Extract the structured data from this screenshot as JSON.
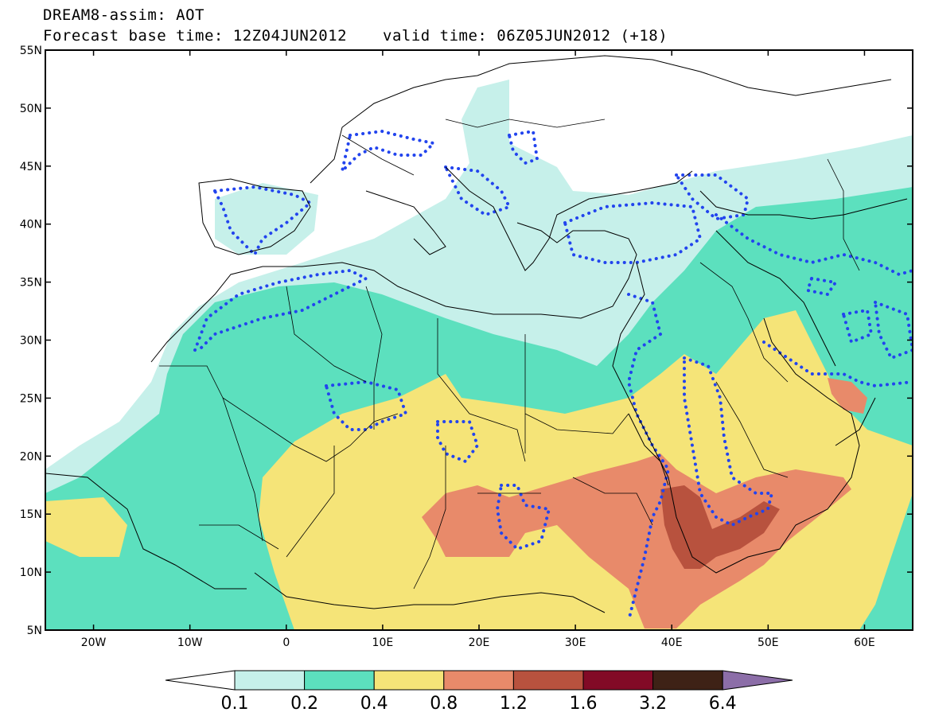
{
  "title": {
    "line1": "DREAM8-assim: AOT",
    "line2": "Forecast base time: 12Z04JUN2012",
    "line3": "valid time: 06Z05JUN2012 (+18)"
  },
  "map": {
    "lat_ticks": [
      "55N",
      "50N",
      "45N",
      "40N",
      "35N",
      "30N",
      "25N",
      "20N",
      "15N",
      "10N",
      "5N"
    ],
    "lon_ticks": [
      "20W",
      "10W",
      "0",
      "10E",
      "20E",
      "30E",
      "40E",
      "50E",
      "60E"
    ],
    "lon_range": [
      -25,
      65
    ],
    "lat_range": [
      5,
      55
    ]
  },
  "colorbar": {
    "labels": [
      "0.1",
      "0.2",
      "0.4",
      "0.8",
      "1.2",
      "1.6",
      "3.2",
      "6.4"
    ],
    "colors": [
      "#ffffff",
      "#c6f0ea",
      "#5ce0be",
      "#f5e478",
      "#e88a6a",
      "#b8523e",
      "#820a26",
      "#3e2216",
      "#8c6ea8"
    ]
  },
  "colors": {
    "very_low": "#c6f0ea",
    "low": "#5ce0be",
    "moderate": "#f5e478",
    "high": "#e88a6a",
    "very_high": "#b8523e",
    "observation_contour": "#2244ee"
  }
}
